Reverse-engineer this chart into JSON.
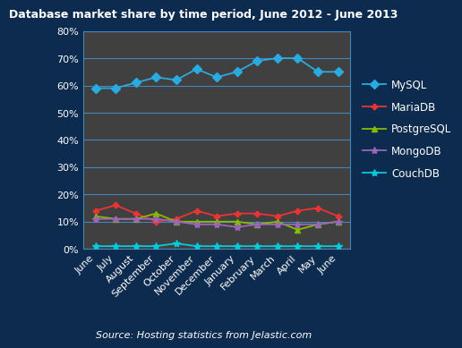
{
  "title": "Database market share by time period, June 2012 - June 2013",
  "source": "Source: Hosting statistics from Jelastic.com",
  "months": [
    "June",
    "July",
    "August",
    "September",
    "October",
    "November",
    "December",
    "January",
    "February",
    "March",
    "April",
    "May",
    "June"
  ],
  "MySQL": [
    59,
    59,
    61,
    63,
    62,
    66,
    63,
    65,
    69,
    70,
    70,
    65,
    65
  ],
  "MariaDB": [
    14,
    16,
    13,
    10,
    11,
    14,
    12,
    13,
    13,
    12,
    14,
    15,
    12
  ],
  "PostgreSQL": [
    12,
    11,
    11,
    13,
    10,
    10,
    10,
    10,
    9,
    10,
    7,
    9,
    10
  ],
  "MongoDB": [
    11,
    11,
    11,
    11,
    10,
    9,
    9,
    8,
    9,
    9,
    9,
    9,
    10
  ],
  "CouchDB": [
    1,
    1,
    1,
    1,
    2,
    1,
    1,
    1,
    1,
    1,
    1,
    1,
    1
  ],
  "bg_color": "#0d2b4e",
  "plot_bg_color": "#404040",
  "grid_color": "#4488bb",
  "title_color": "#ffffff",
  "MySQL_color": "#29abe2",
  "MariaDB_color": "#ee3333",
  "PostgreSQL_color": "#88bb00",
  "MongoDB_color": "#9966bb",
  "CouchDB_color": "#00ccdd",
  "tick_color": "#ffffff",
  "source_color": "#ffffff",
  "ylim": [
    0,
    80
  ],
  "yticks": [
    0,
    10,
    20,
    30,
    40,
    50,
    60,
    70,
    80
  ]
}
